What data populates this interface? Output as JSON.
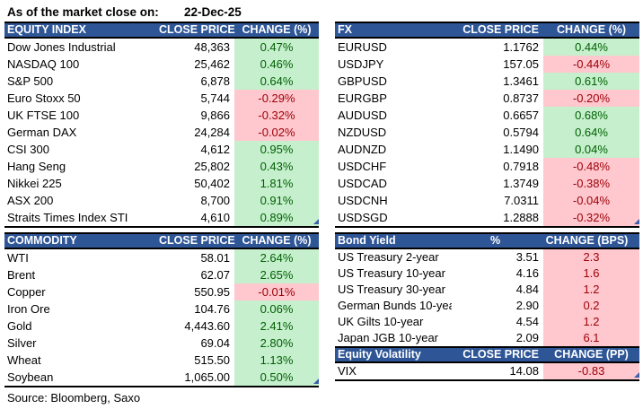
{
  "meta": {
    "as_of_label": "As of the market close on:",
    "as_of_date": "22-Dec-25",
    "source": "Source: Bloomberg, Saxo"
  },
  "colors": {
    "header_bg": "#2E5596",
    "header_text": "#FFFFFF",
    "positive_bg": "#C6EFCE",
    "positive_text": "#006100",
    "negative_bg": "#FFC7CE",
    "negative_text": "#9C0006",
    "border": "#000000",
    "corner_marker": "#3A5FAD"
  },
  "tables": {
    "equity": {
      "title": "EQUITY INDEX",
      "col2": "CLOSE PRICE",
      "col3": "CHANGE (%)",
      "rows": [
        {
          "name": "Dow Jones Industrial",
          "price": "48,363",
          "change": "0.47%",
          "state": "pos"
        },
        {
          "name": "NASDAQ 100",
          "price": "25,462",
          "change": "0.46%",
          "state": "pos"
        },
        {
          "name": "S&P 500",
          "price": "6,878",
          "change": "0.64%",
          "state": "pos"
        },
        {
          "name": "Euro Stoxx 50",
          "price": "5,744",
          "change": "-0.29%",
          "state": "neg"
        },
        {
          "name": "UK FTSE 100",
          "price": "9,866",
          "change": "-0.32%",
          "state": "neg"
        },
        {
          "name": "German DAX",
          "price": "24,284",
          "change": "-0.02%",
          "state": "neg"
        },
        {
          "name": "CSI 300",
          "price": "4,612",
          "change": "0.95%",
          "state": "pos"
        },
        {
          "name": "Hang Seng",
          "price": "25,802",
          "change": "0.43%",
          "state": "pos"
        },
        {
          "name": "Nikkei 225",
          "price": "50,402",
          "change": "1.81%",
          "state": "pos"
        },
        {
          "name": "ASX 200",
          "price": "8,700",
          "change": "0.91%",
          "state": "pos"
        },
        {
          "name": "Straits Times Index STI",
          "price": "4,610",
          "change": "0.89%",
          "state": "pos"
        }
      ]
    },
    "fx": {
      "title": "FX",
      "col2": "CLOSE PRICE",
      "col3": "CHANGE (%)",
      "rows": [
        {
          "name": "EURUSD",
          "price": "1.1762",
          "change": "0.44%",
          "state": "pos"
        },
        {
          "name": "USDJPY",
          "price": "157.05",
          "change": "-0.44%",
          "state": "neg"
        },
        {
          "name": "GBPUSD",
          "price": "1.3461",
          "change": "0.61%",
          "state": "pos"
        },
        {
          "name": "EURGBP",
          "price": "0.8737",
          "change": "-0.20%",
          "state": "neg"
        },
        {
          "name": "AUDUSD",
          "price": "0.6657",
          "change": "0.68%",
          "state": "pos"
        },
        {
          "name": "NZDUSD",
          "price": "0.5794",
          "change": "0.64%",
          "state": "pos"
        },
        {
          "name": "AUDNZD",
          "price": "1.1490",
          "change": "0.04%",
          "state": "pos"
        },
        {
          "name": "USDCHF",
          "price": "0.7918",
          "change": "-0.48%",
          "state": "neg"
        },
        {
          "name": "USDCAD",
          "price": "1.3749",
          "change": "-0.38%",
          "state": "neg"
        },
        {
          "name": "USDCNH",
          "price": "7.0311",
          "change": "-0.04%",
          "state": "neg"
        },
        {
          "name": "USDSGD",
          "price": "1.2888",
          "change": "-0.32%",
          "state": "neg"
        }
      ]
    },
    "commodity": {
      "title": "COMMODITY",
      "col2": "CLOSE PRICE",
      "col3": "CHANGE (%)",
      "rows": [
        {
          "name": "WTI",
          "price": "58.01",
          "change": "2.64%",
          "state": "pos"
        },
        {
          "name": "Brent",
          "price": "62.07",
          "change": "2.65%",
          "state": "pos"
        },
        {
          "name": "Copper",
          "price": "550.95",
          "change": "-0.01%",
          "state": "neg"
        },
        {
          "name": "Iron Ore",
          "price": "104.76",
          "change": "0.06%",
          "state": "pos"
        },
        {
          "name": "Gold",
          "price": "4,443.60",
          "change": "2.41%",
          "state": "pos"
        },
        {
          "name": "Silver",
          "price": "69.04",
          "change": "2.80%",
          "state": "pos"
        },
        {
          "name": "Wheat",
          "price": "515.50",
          "change": "1.13%",
          "state": "pos"
        },
        {
          "name": "Soybean",
          "price": "1,065.00",
          "change": "0.50%",
          "state": "pos"
        }
      ]
    },
    "bond": {
      "title": "Bond Yield",
      "col2": "%",
      "col3": "CHANGE (BPS)",
      "rows": [
        {
          "name": "US Treasury 2-year",
          "price": "3.51",
          "change": "2.3",
          "state": "neg"
        },
        {
          "name": "US Treasury 10-year",
          "price": "4.16",
          "change": "1.6",
          "state": "neg"
        },
        {
          "name": "US Treasury 30-year",
          "price": "4.84",
          "change": "1.2",
          "state": "neg"
        },
        {
          "name": "German Bunds 10-year",
          "price": "2.90",
          "change": "0.2",
          "state": "neg"
        },
        {
          "name": "UK Gilts 10-year",
          "price": "4.54",
          "change": "1.2",
          "state": "neg"
        },
        {
          "name": "Japan JGB 10-year",
          "price": "2.09",
          "change": "6.1",
          "state": "neg"
        }
      ]
    },
    "volatility": {
      "title": "Equity Volatility",
      "col2": "CLOSE PRICE",
      "col3": "CHANGE (PP)",
      "rows": [
        {
          "name": "VIX",
          "price": "14.08",
          "change": "-0.83",
          "state": "neg"
        }
      ]
    }
  }
}
